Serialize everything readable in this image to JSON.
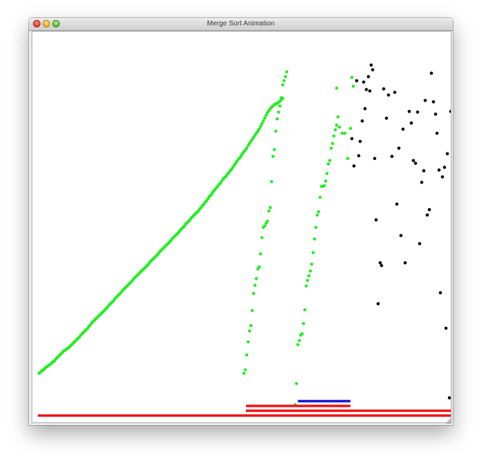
{
  "window": {
    "title": "Merge Sort Animation"
  },
  "colors": {
    "sorted_point": "#22ee22",
    "unsorted_point": "#000000",
    "active_range": "#1111cc",
    "merge_range": "#ee1111"
  },
  "chart_data": {
    "type": "scatter",
    "title": "",
    "xlabel": "",
    "ylabel": "",
    "xlim": [
      0,
      605
    ],
    "ylim": [
      0,
      565
    ],
    "grid": false,
    "series": [
      {
        "role": "sorted",
        "points": [
          [
            10,
            68
          ],
          [
            12,
            70
          ],
          [
            14,
            72
          ],
          [
            16,
            73
          ],
          [
            18,
            75
          ],
          [
            20,
            77
          ],
          [
            22,
            78
          ],
          [
            24,
            80
          ],
          [
            26,
            81
          ],
          [
            28,
            83
          ],
          [
            30,
            85
          ],
          [
            32,
            86
          ],
          [
            34,
            89
          ],
          [
            36,
            91
          ],
          [
            38,
            93
          ],
          [
            40,
            95
          ],
          [
            42,
            97
          ],
          [
            44,
            99
          ],
          [
            46,
            101
          ],
          [
            48,
            102
          ],
          [
            50,
            104
          ],
          [
            52,
            105
          ],
          [
            54,
            107
          ],
          [
            56,
            109
          ],
          [
            58,
            111
          ],
          [
            60,
            113
          ],
          [
            62,
            115
          ],
          [
            64,
            117
          ],
          [
            66,
            119
          ],
          [
            68,
            121
          ],
          [
            70,
            124
          ],
          [
            72,
            126
          ],
          [
            74,
            128
          ],
          [
            76,
            130
          ],
          [
            78,
            132
          ],
          [
            80,
            134
          ],
          [
            82,
            137
          ],
          [
            84,
            139
          ],
          [
            86,
            142
          ],
          [
            88,
            144
          ],
          [
            90,
            146
          ],
          [
            92,
            148
          ],
          [
            94,
            150
          ],
          [
            96,
            152
          ],
          [
            98,
            154
          ],
          [
            100,
            156
          ],
          [
            102,
            158
          ],
          [
            104,
            160
          ],
          [
            106,
            162
          ],
          [
            108,
            164
          ],
          [
            110,
            167
          ],
          [
            112,
            169
          ],
          [
            114,
            171
          ],
          [
            116,
            173
          ],
          [
            118,
            175
          ],
          [
            120,
            178
          ],
          [
            122,
            180
          ],
          [
            124,
            182
          ],
          [
            126,
            184
          ],
          [
            128,
            186
          ],
          [
            130,
            189
          ],
          [
            132,
            191
          ],
          [
            134,
            193
          ],
          [
            136,
            195
          ],
          [
            138,
            197
          ],
          [
            140,
            199
          ],
          [
            142,
            201
          ],
          [
            144,
            203
          ],
          [
            146,
            206
          ],
          [
            148,
            208
          ],
          [
            150,
            210
          ],
          [
            152,
            212
          ],
          [
            154,
            214
          ],
          [
            156,
            216
          ],
          [
            158,
            218
          ],
          [
            160,
            220
          ],
          [
            162,
            222
          ],
          [
            164,
            224
          ],
          [
            166,
            226
          ],
          [
            168,
            228
          ],
          [
            170,
            231
          ],
          [
            172,
            233
          ],
          [
            174,
            235
          ],
          [
            176,
            237
          ],
          [
            178,
            239
          ],
          [
            180,
            241
          ],
          [
            182,
            243
          ],
          [
            184,
            246
          ],
          [
            186,
            248
          ],
          [
            188,
            250
          ],
          [
            190,
            252
          ],
          [
            192,
            254
          ],
          [
            194,
            256
          ],
          [
            196,
            258
          ],
          [
            198,
            260
          ],
          [
            200,
            262
          ],
          [
            202,
            265
          ],
          [
            204,
            267
          ],
          [
            206,
            269
          ],
          [
            208,
            271
          ],
          [
            210,
            273
          ],
          [
            212,
            275
          ],
          [
            214,
            278
          ],
          [
            216,
            280
          ],
          [
            218,
            282
          ],
          [
            220,
            284
          ],
          [
            222,
            287
          ],
          [
            224,
            289
          ],
          [
            226,
            291
          ],
          [
            228,
            293
          ],
          [
            230,
            296
          ],
          [
            232,
            298
          ],
          [
            234,
            300
          ],
          [
            236,
            302
          ],
          [
            238,
            304
          ],
          [
            240,
            306
          ],
          [
            242,
            309
          ],
          [
            244,
            311
          ],
          [
            246,
            314
          ],
          [
            248,
            316
          ],
          [
            250,
            319
          ],
          [
            252,
            321
          ],
          [
            254,
            324
          ],
          [
            256,
            327
          ],
          [
            258,
            329
          ],
          [
            260,
            332
          ],
          [
            262,
            335
          ],
          [
            264,
            337
          ],
          [
            266,
            340
          ],
          [
            268,
            342
          ],
          [
            270,
            345
          ],
          [
            272,
            347
          ],
          [
            274,
            350
          ],
          [
            276,
            353
          ],
          [
            278,
            355
          ],
          [
            280,
            357
          ],
          [
            282,
            360
          ],
          [
            284,
            362
          ],
          [
            286,
            365
          ],
          [
            288,
            367
          ],
          [
            290,
            370
          ],
          [
            292,
            373
          ],
          [
            294,
            376
          ],
          [
            296,
            379
          ],
          [
            298,
            382
          ],
          [
            300,
            384
          ],
          [
            302,
            387
          ],
          [
            304,
            390
          ],
          [
            306,
            393
          ],
          [
            308,
            395
          ],
          [
            310,
            398
          ],
          [
            312,
            402
          ],
          [
            314,
            405
          ],
          [
            316,
            408
          ],
          [
            318,
            411
          ],
          [
            320,
            414
          ],
          [
            322,
            417
          ],
          [
            324,
            420
          ],
          [
            326,
            423
          ],
          [
            328,
            426
          ],
          [
            330,
            430
          ],
          [
            332,
            434
          ],
          [
            334,
            438
          ],
          [
            336,
            442
          ],
          [
            338,
            446
          ],
          [
            340,
            450
          ],
          [
            342,
            453
          ],
          [
            344,
            456
          ],
          [
            346,
            458
          ],
          [
            348,
            460
          ],
          [
            350,
            462
          ],
          [
            352,
            463
          ],
          [
            354,
            464
          ],
          [
            356,
            465
          ],
          [
            358,
            467
          ],
          [
            360,
            469
          ],
          [
            362,
            471
          ],
          [
            306,
            68
          ],
          [
            308,
            73
          ],
          [
            310,
            95
          ],
          [
            312,
            114
          ],
          [
            314,
            130
          ],
          [
            316,
            138
          ],
          [
            318,
            160
          ],
          [
            320,
            185
          ],
          [
            322,
            197
          ],
          [
            324,
            207
          ],
          [
            326,
            221
          ],
          [
            328,
            224
          ],
          [
            330,
            243
          ],
          [
            332,
            267
          ],
          [
            334,
            282
          ],
          [
            336,
            284
          ],
          [
            338,
            288
          ],
          [
            340,
            291
          ],
          [
            342,
            306
          ],
          [
            344,
            311
          ],
          [
            346,
            349
          ],
          [
            348,
            386
          ],
          [
            350,
            396
          ],
          [
            352,
            423
          ],
          [
            354,
            441
          ],
          [
            356,
            451
          ],
          [
            358,
            460
          ],
          [
            360,
            472
          ],
          [
            362,
            491
          ],
          [
            364,
            497
          ],
          [
            366,
            503
          ],
          [
            368,
            510
          ],
          [
            380,
            22
          ],
          [
            382,
            53
          ],
          [
            384,
            110
          ],
          [
            386,
            116
          ],
          [
            388,
            124
          ],
          [
            390,
            126
          ],
          [
            392,
            141
          ],
          [
            394,
            161
          ],
          [
            396,
            196
          ],
          [
            398,
            204
          ],
          [
            400,
            211
          ],
          [
            402,
            218
          ],
          [
            404,
            228
          ],
          [
            406,
            245
          ],
          [
            408,
            265
          ],
          [
            410,
            282
          ],
          [
            412,
            300
          ],
          [
            414,
            305
          ],
          [
            416,
            326
          ],
          [
            418,
            342
          ],
          [
            420,
            342
          ],
          [
            422,
            343
          ],
          [
            424,
            350
          ],
          [
            426,
            361
          ],
          [
            428,
            375
          ],
          [
            430,
            380
          ],
          [
            432,
            398
          ],
          [
            434,
            405
          ],
          [
            436,
            416
          ],
          [
            438,
            425
          ],
          [
            440,
            432
          ],
          [
            442,
            444
          ],
          [
            440,
            486
          ],
          [
            444,
            429
          ],
          [
            448,
            420
          ],
          [
            452,
            420
          ],
          [
            456,
            383
          ],
          [
            460,
            427
          ],
          [
            462,
            502
          ],
          [
            464,
            489
          ]
        ]
      },
      {
        "role": "unsorted",
        "points": [
          [
            462,
            412
          ],
          [
            465,
            372
          ],
          [
            469,
            497
          ],
          [
            472,
            387
          ],
          [
            474,
            408
          ],
          [
            477,
            438
          ],
          [
            479,
            495
          ],
          [
            481,
            456
          ],
          [
            483,
            484
          ],
          [
            486,
            503
          ],
          [
            488,
            482
          ],
          [
            490,
            520
          ],
          [
            492,
            513
          ],
          [
            495,
            383
          ],
          [
            497,
            293
          ],
          [
            500,
            170
          ],
          [
            503,
            230
          ],
          [
            505,
            226
          ],
          [
            508,
            485
          ],
          [
            512,
            442
          ],
          [
            515,
            476
          ],
          [
            520,
            386
          ],
          [
            524,
            480
          ],
          [
            527,
            316
          ],
          [
            530,
            398
          ],
          [
            533,
            270
          ],
          [
            536,
            426
          ],
          [
            539,
            230
          ],
          [
            545,
            452
          ],
          [
            548,
            435
          ],
          [
            551,
            380
          ],
          [
            554,
            376
          ],
          [
            557,
            451
          ],
          [
            560,
            258
          ],
          [
            563,
            348
          ],
          [
            566,
            365
          ],
          [
            568,
            468
          ],
          [
            571,
            300
          ],
          [
            574,
            308
          ],
          [
            577,
            508
          ],
          [
            580,
            466
          ],
          [
            583,
            448
          ],
          [
            585,
            420
          ],
          [
            588,
            366
          ],
          [
            590,
            186
          ],
          [
            593,
            356
          ],
          [
            596,
            370
          ],
          [
            598,
            134
          ],
          [
            600,
            390
          ],
          [
            603,
            32
          ],
          [
            605,
            452
          ]
        ]
      }
    ],
    "range_bars": [
      {
        "role": "active",
        "level": 3,
        "from": 384,
        "to": 460
      },
      {
        "role": "merge",
        "level": 2,
        "from": 309,
        "to": 460
      },
      {
        "role": "merge",
        "level": 1,
        "from": 309,
        "to": 610
      },
      {
        "role": "merge",
        "level": 0,
        "from": 8,
        "to": 610
      }
    ]
  }
}
